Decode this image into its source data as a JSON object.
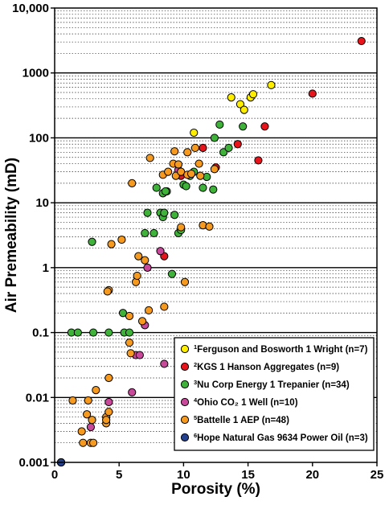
{
  "chart_data": {
    "type": "scatter",
    "xlabel": "Porosity (%)",
    "ylabel": "Air Premeability (mD)",
    "xlim": [
      0,
      25
    ],
    "ylim": [
      0.001,
      10000
    ],
    "y_scale": "log",
    "grid": "dotted minor, solid decade lines",
    "legend_placement": "bottom-right",
    "x_ticks": [
      "0",
      "5",
      "10",
      "15",
      "20",
      "25"
    ],
    "y_ticks": [
      "0.001",
      "0.01",
      "0.1",
      "1",
      "10",
      "100",
      "1000",
      "10,000"
    ],
    "series": [
      {
        "sup": "1",
        "name": "Ferguson and Bosworth 1 Wright (n=7)",
        "color": "#ffee00",
        "points": [
          [
            10.8,
            120
          ],
          [
            13.7,
            420
          ],
          [
            14.4,
            330
          ],
          [
            14.7,
            270
          ],
          [
            15.2,
            420
          ],
          [
            15.4,
            470
          ],
          [
            16.8,
            650
          ]
        ]
      },
      {
        "sup": "2",
        "name": "KGS 1 Hanson Aggregates (n=9)",
        "color": "#e8141b",
        "points": [
          [
            8.5,
            1.5
          ],
          [
            9.8,
            26
          ],
          [
            11.5,
            70
          ],
          [
            12.5,
            35
          ],
          [
            14.2,
            80
          ],
          [
            15.8,
            45
          ],
          [
            16.3,
            150
          ],
          [
            20.0,
            480
          ],
          [
            23.8,
            3100
          ]
        ]
      },
      {
        "sup": "3",
        "name": "Nu Corp Energy 1 Trepanier (n=34)",
        "color": "#3fb23a",
        "points": [
          [
            1.3,
            0.1
          ],
          [
            1.8,
            0.1
          ],
          [
            2.9,
            2.5
          ],
          [
            3.0,
            0.1
          ],
          [
            4.2,
            0.1
          ],
          [
            5.3,
            0.2
          ],
          [
            5.4,
            0.1
          ],
          [
            5.8,
            0.1
          ],
          [
            7.2,
            7
          ],
          [
            7.0,
            3.4
          ],
          [
            7.7,
            3.4
          ],
          [
            7.9,
            17
          ],
          [
            8.2,
            7
          ],
          [
            8.4,
            6
          ],
          [
            8.5,
            7
          ],
          [
            8.4,
            14
          ],
          [
            8.7,
            15
          ],
          [
            8.6,
            15
          ],
          [
            9.1,
            0.8
          ],
          [
            9.3,
            6.5
          ],
          [
            9.6,
            3.4
          ],
          [
            9.8,
            3.8
          ],
          [
            10.0,
            19
          ],
          [
            10.2,
            18
          ],
          [
            10.5,
            26
          ],
          [
            10.8,
            30
          ],
          [
            11.5,
            17
          ],
          [
            11.8,
            25
          ],
          [
            12.3,
            16
          ],
          [
            12.4,
            100
          ],
          [
            12.8,
            160
          ],
          [
            13.1,
            60
          ],
          [
            13.5,
            70
          ],
          [
            14.6,
            150
          ]
        ]
      },
      {
        "sup": "4",
        "name": "Ohio CO₂ 1 Well (n=10)",
        "color": "#c8489a",
        "points": [
          [
            4.2,
            0.0085
          ],
          [
            6.0,
            0.012
          ],
          [
            2.8,
            0.0035
          ],
          [
            6.3,
            0.045
          ],
          [
            6.6,
            0.045
          ],
          [
            7.0,
            0.13
          ],
          [
            7.2,
            1.0
          ],
          [
            8.2,
            1.8
          ],
          [
            8.5,
            0.033
          ],
          [
            9.6,
            32
          ]
        ]
      },
      {
        "sup": "5",
        "name": "Battelle 1 AEP (n=48)",
        "color": "#f59a1f",
        "points": [
          [
            1.4,
            0.009
          ],
          [
            2.1,
            0.003
          ],
          [
            2.2,
            0.002
          ],
          [
            2.5,
            0.0055
          ],
          [
            2.8,
            0.002
          ],
          [
            2.9,
            0.0045
          ],
          [
            3.0,
            0.002
          ],
          [
            2.6,
            0.009
          ],
          [
            3.2,
            0.013
          ],
          [
            4.0,
            0.005
          ],
          [
            4.0,
            0.004
          ],
          [
            4.0,
            0.0045
          ],
          [
            4.2,
            0.006
          ],
          [
            4.2,
            0.45
          ],
          [
            4.1,
            0.43
          ],
          [
            4.2,
            0.02
          ],
          [
            4.4,
            2.3
          ],
          [
            5.2,
            2.7
          ],
          [
            5.8,
            0.18
          ],
          [
            5.8,
            0.07
          ],
          [
            5.9,
            0.048
          ],
          [
            6.0,
            20
          ],
          [
            6.3,
            0.6
          ],
          [
            6.4,
            0.75
          ],
          [
            6.5,
            1.5
          ],
          [
            6.8,
            0.15
          ],
          [
            7.0,
            1.3
          ],
          [
            7.3,
            0.22
          ],
          [
            7.4,
            49
          ],
          [
            8.5,
            0.25
          ],
          [
            8.4,
            27
          ],
          [
            8.8,
            30
          ],
          [
            9.2,
            40
          ],
          [
            9.4,
            26
          ],
          [
            9.3,
            62
          ],
          [
            9.6,
            39
          ],
          [
            9.8,
            30
          ],
          [
            10.1,
            0.6
          ],
          [
            10.3,
            27
          ],
          [
            10.3,
            60
          ],
          [
            10.6,
            28
          ],
          [
            10.9,
            70
          ],
          [
            11.2,
            40
          ],
          [
            11.3,
            26
          ],
          [
            11.5,
            4.5
          ],
          [
            12.0,
            4.3
          ],
          [
            12.4,
            33
          ],
          [
            9.8,
            4.2
          ]
        ]
      },
      {
        "sup": "6",
        "name": "Hope Natural Gas 9634 Power Oil (n=3)",
        "color": "#24418f",
        "points": [
          [
            0.5,
            0.001
          ],
          [
            0.5,
            0.001
          ],
          [
            0.5,
            0.001
          ]
        ]
      }
    ]
  }
}
